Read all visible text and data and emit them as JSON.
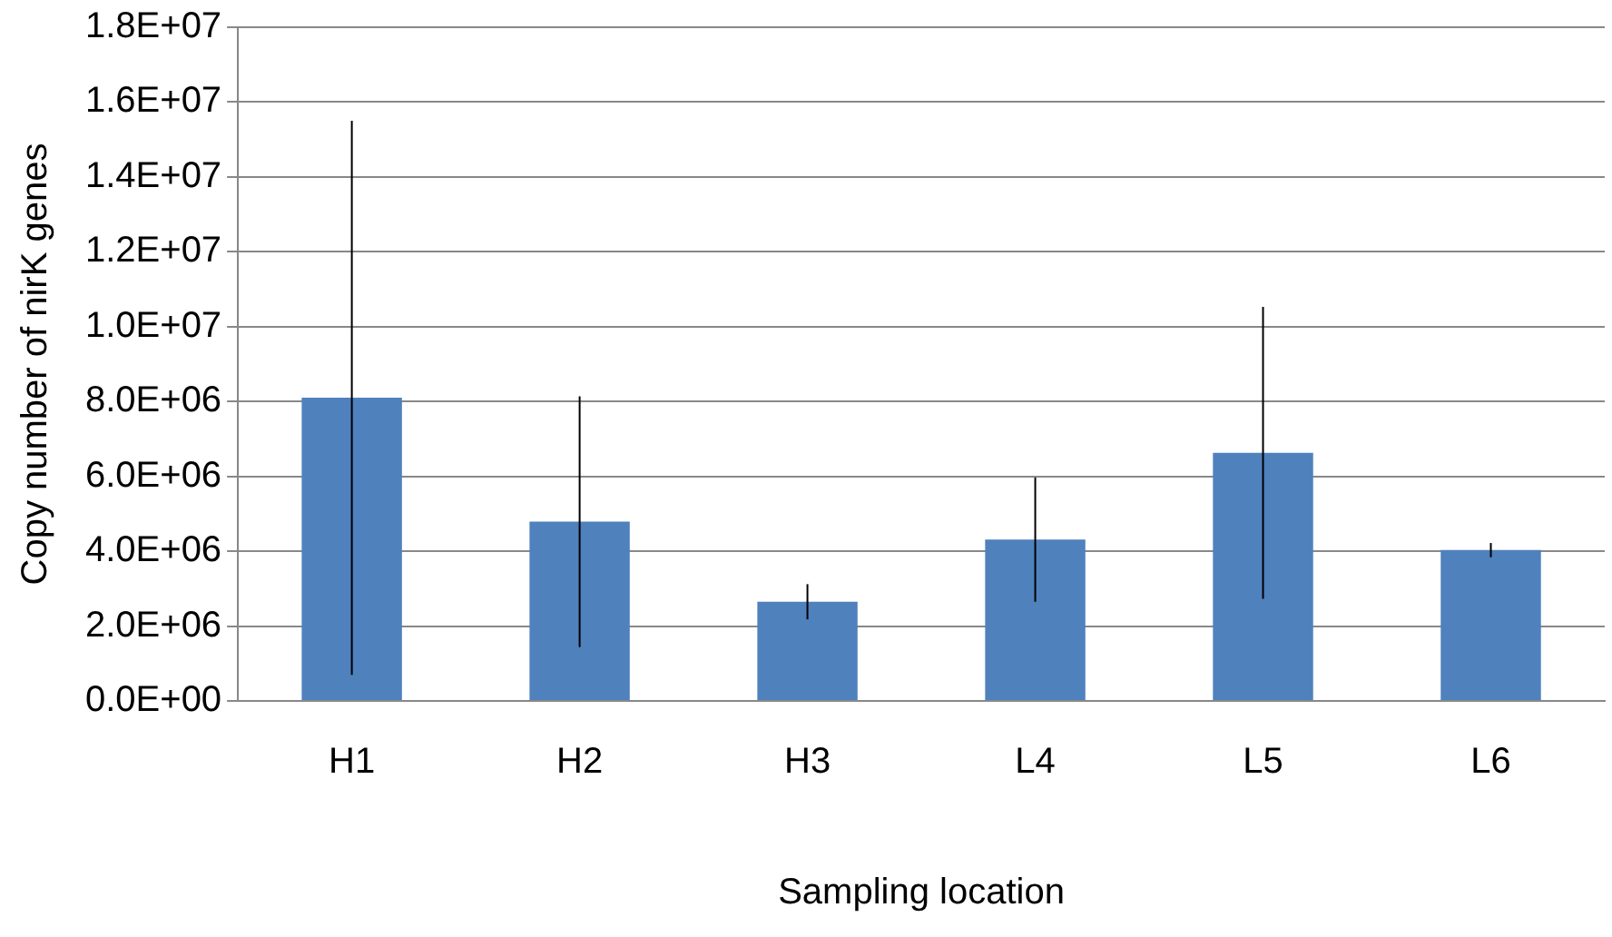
{
  "chart_data": {
    "type": "bar",
    "xlabel": "Sampling location",
    "ylabel": "Copy number of nirK genes",
    "categories": [
      "H1",
      "H2",
      "H3",
      "L4",
      "L5",
      "L6"
    ],
    "values": [
      8100000,
      4790000,
      2650000,
      4310000,
      6630000,
      4030000
    ],
    "errors": [
      7400000,
      3350000,
      470000,
      1660000,
      3900000,
      190000
    ],
    "color": "#4f81bd",
    "ylim": [
      0,
      18000000
    ],
    "yticks": [
      {
        "value": 0,
        "label": "0.0E+00"
      },
      {
        "value": 2000000,
        "label": "2.0E+06"
      },
      {
        "value": 4000000,
        "label": "4.0E+06"
      },
      {
        "value": 6000000,
        "label": "6.0E+06"
      },
      {
        "value": 8000000,
        "label": "8.0E+06"
      },
      {
        "value": 10000000,
        "label": "1.0E+07"
      },
      {
        "value": 12000000,
        "label": "1.2E+07"
      },
      {
        "value": 14000000,
        "label": "1.4E+07"
      },
      {
        "value": 16000000,
        "label": "1.6E+07"
      },
      {
        "value": 18000000,
        "label": "1.8E+07"
      }
    ],
    "grid": "y",
    "legend": false
  }
}
